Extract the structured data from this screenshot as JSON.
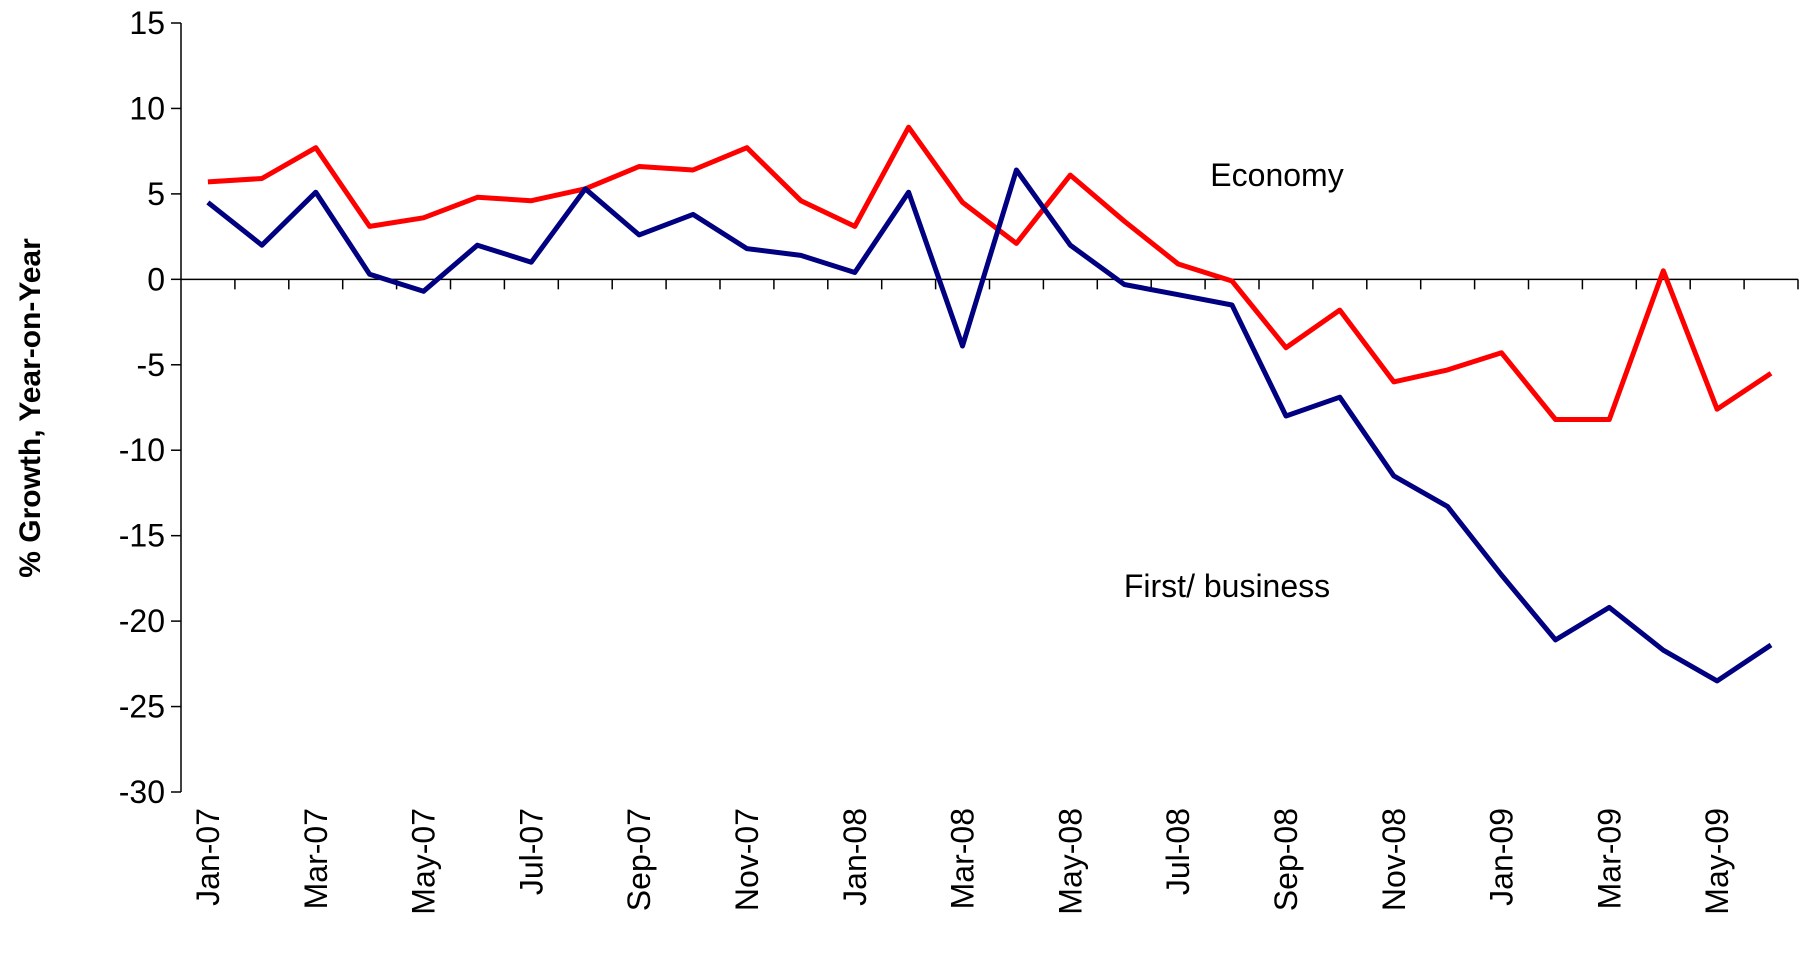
{
  "chart_data": {
    "type": "line",
    "y_axis_label": "% Growth, Year-on-Year",
    "annotations": [
      "Economy",
      "First/ business"
    ],
    "categories": [
      "Jan-07",
      null,
      "Mar-07",
      null,
      "May-07",
      null,
      "Jul-07",
      null,
      "Sep-07",
      null,
      "Nov-07",
      null,
      "Jan-08",
      null,
      "Mar-08",
      null,
      "May-08",
      null,
      "Jul-08",
      null,
      "Sep-08",
      null,
      "Nov-08",
      null,
      "Jan-09",
      null,
      "Mar-09",
      null,
      "May-09",
      null
    ],
    "series": [
      {
        "name": "Economy",
        "color": "#ff0000",
        "values": [
          5.7,
          5.9,
          7.7,
          3.1,
          3.6,
          4.8,
          4.6,
          5.3,
          6.6,
          6.4,
          7.7,
          4.6,
          3.1,
          8.9,
          4.5,
          2.1,
          6.1,
          3.4,
          0.9,
          -0.1,
          -4.0,
          -1.8,
          -6.0,
          -5.3,
          -4.3,
          -8.2,
          -8.2,
          0.5,
          -7.6,
          -5.5
        ]
      },
      {
        "name": "First/ business",
        "color": "#000080",
        "values": [
          4.5,
          2.0,
          5.1,
          0.3,
          -0.7,
          2.0,
          1.0,
          5.3,
          2.6,
          3.8,
          1.8,
          1.4,
          0.4,
          5.1,
          -3.9,
          6.4,
          2.0,
          -0.3,
          -0.9,
          -1.5,
          -8.0,
          -6.9,
          -11.5,
          -13.3,
          -17.3,
          -21.1,
          -19.2,
          -21.7,
          -23.5,
          -21.4
        ]
      }
    ],
    "ylim": [
      -30,
      15
    ],
    "yticks": [
      -30,
      -25,
      -20,
      -15,
      -10,
      -5,
      0,
      5,
      10,
      15
    ],
    "grid": false
  }
}
